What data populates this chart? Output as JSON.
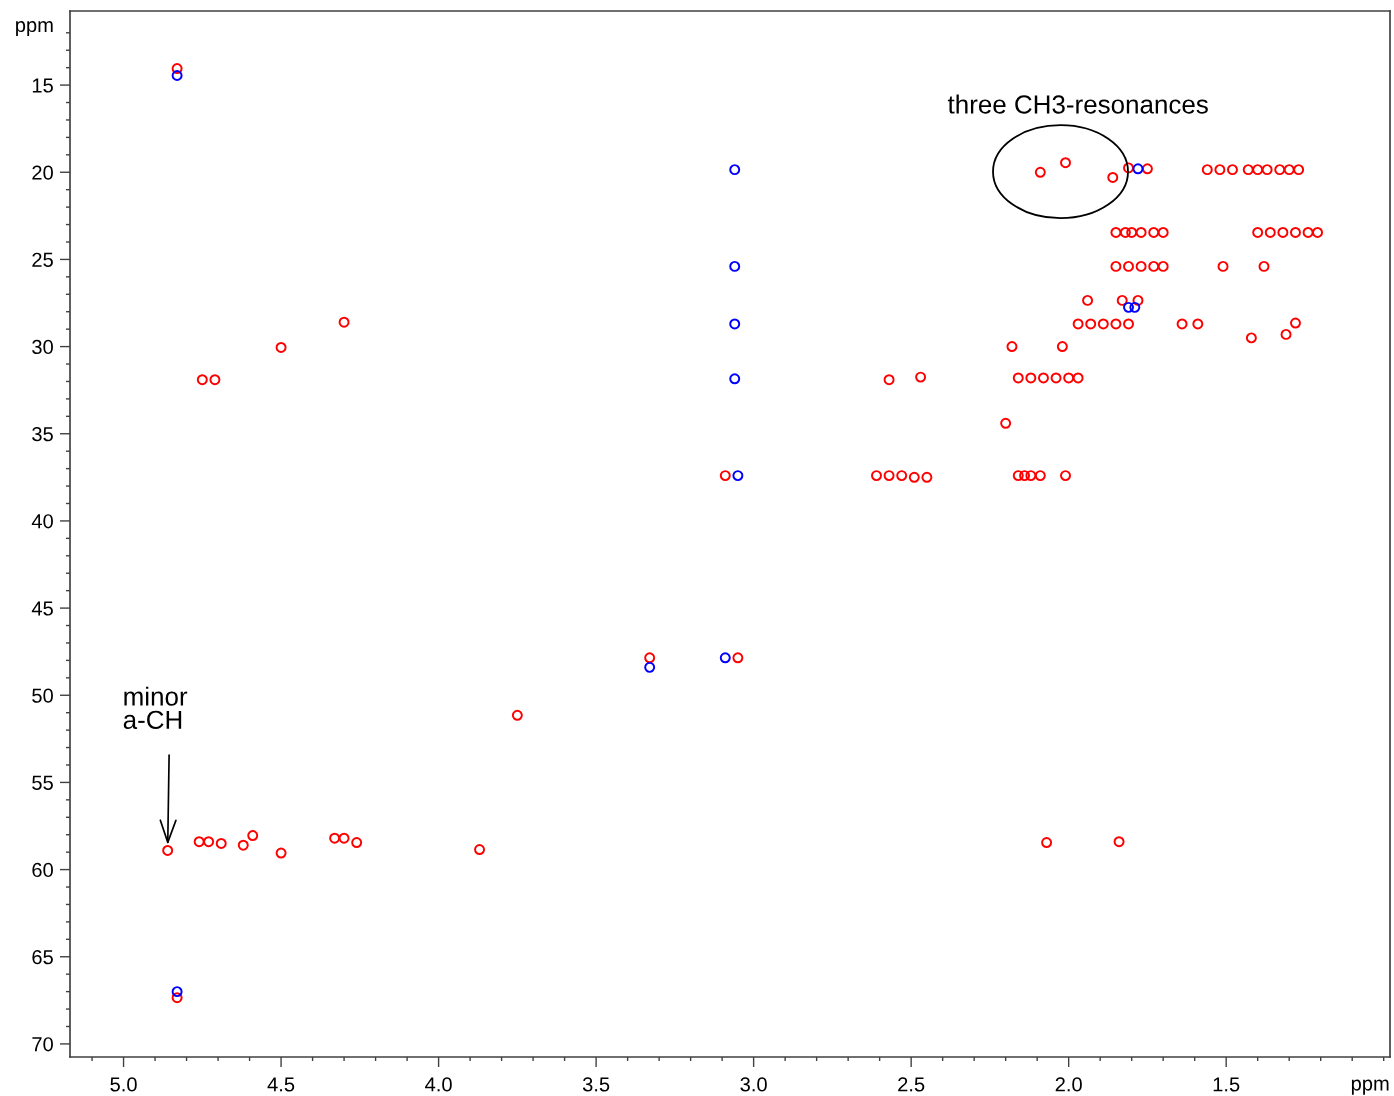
{
  "chart_data": {
    "type": "scatter",
    "xlabel": "ppm",
    "ylabel": "ppm",
    "marker": "circle",
    "xlim": [
      5.17,
      0.98
    ],
    "ylim": [
      70.75,
      10.75
    ],
    "xticks": [
      {
        "value": 5.0,
        "label": "5.0"
      },
      {
        "value": 4.5,
        "label": "4.5"
      },
      {
        "value": 4.0,
        "label": "4.0"
      },
      {
        "value": 3.5,
        "label": "3.5"
      },
      {
        "value": 3.0,
        "label": "3.0"
      },
      {
        "value": 2.5,
        "label": "2.5"
      },
      {
        "value": 2.0,
        "label": "2.0"
      },
      {
        "value": 1.5,
        "label": "1.5"
      },
      {
        "value": 5.1,
        "label": null
      },
      {
        "value": 4.9,
        "label": null
      },
      {
        "value": 4.8,
        "label": null
      },
      {
        "value": 4.7,
        "label": null
      },
      {
        "value": 4.6,
        "label": null
      },
      {
        "value": 4.4,
        "label": null
      },
      {
        "value": 4.3,
        "label": null
      },
      {
        "value": 4.2,
        "label": null
      },
      {
        "value": 4.1,
        "label": null
      },
      {
        "value": 3.9,
        "label": null
      },
      {
        "value": 3.8,
        "label": null
      },
      {
        "value": 3.7,
        "label": null
      },
      {
        "value": 3.6,
        "label": null
      },
      {
        "value": 3.4,
        "label": null
      },
      {
        "value": 3.3,
        "label": null
      },
      {
        "value": 3.2,
        "label": null
      },
      {
        "value": 3.1,
        "label": null
      },
      {
        "value": 2.9,
        "label": null
      },
      {
        "value": 2.8,
        "label": null
      },
      {
        "value": 2.7,
        "label": null
      },
      {
        "value": 2.6,
        "label": null
      },
      {
        "value": 2.4,
        "label": null
      },
      {
        "value": 2.3,
        "label": null
      },
      {
        "value": 2.2,
        "label": null
      },
      {
        "value": 2.1,
        "label": null
      },
      {
        "value": 1.9,
        "label": null
      },
      {
        "value": 1.8,
        "label": null
      },
      {
        "value": 1.7,
        "label": null
      },
      {
        "value": 1.6,
        "label": null
      },
      {
        "value": 1.4,
        "label": null
      },
      {
        "value": 1.3,
        "label": null
      },
      {
        "value": 1.2,
        "label": null
      },
      {
        "value": 1.1,
        "label": null
      },
      {
        "value": 1.0,
        "label": null
      }
    ],
    "yticks": [
      15,
      20,
      25,
      30,
      35,
      40,
      45,
      50,
      55,
      60,
      65,
      70,
      {
        "value": 12,
        "label": null
      },
      {
        "value": 13,
        "label": null
      },
      {
        "value": 14,
        "label": null
      },
      {
        "value": 16,
        "label": null
      },
      {
        "value": 17,
        "label": null
      },
      {
        "value": 18,
        "label": null
      },
      {
        "value": 19,
        "label": null
      },
      {
        "value": 21,
        "label": null
      },
      {
        "value": 22,
        "label": null
      },
      {
        "value": 23,
        "label": null
      },
      {
        "value": 24,
        "label": null
      },
      {
        "value": 26,
        "label": null
      },
      {
        "value": 27,
        "label": null
      },
      {
        "value": 28,
        "label": null
      },
      {
        "value": 29,
        "label": null
      },
      {
        "value": 31,
        "label": null
      },
      {
        "value": 32,
        "label": null
      },
      {
        "value": 33,
        "label": null
      },
      {
        "value": 34,
        "label": null
      },
      {
        "value": 36,
        "label": null
      },
      {
        "value": 37,
        "label": null
      },
      {
        "value": 38,
        "label": null
      },
      {
        "value": 39,
        "label": null
      },
      {
        "value": 41,
        "label": null
      },
      {
        "value": 42,
        "label": null
      },
      {
        "value": 43,
        "label": null
      },
      {
        "value": 44,
        "label": null
      },
      {
        "value": 46,
        "label": null
      },
      {
        "value": 47,
        "label": null
      },
      {
        "value": 48,
        "label": null
      },
      {
        "value": 49,
        "label": null
      },
      {
        "value": 51,
        "label": null
      },
      {
        "value": 52,
        "label": null
      },
      {
        "value": 53,
        "label": null
      },
      {
        "value": 54,
        "label": null
      },
      {
        "value": 56,
        "label": null
      },
      {
        "value": 57,
        "label": null
      },
      {
        "value": 58,
        "label": null
      },
      {
        "value": 59,
        "label": null
      },
      {
        "value": 61,
        "label": null
      },
      {
        "value": 62,
        "label": null
      },
      {
        "value": 63,
        "label": null
      },
      {
        "value": 64,
        "label": null
      },
      {
        "value": 66,
        "label": null
      },
      {
        "value": 67,
        "label": null
      },
      {
        "value": 68,
        "label": null
      },
      {
        "value": 69,
        "label": null
      }
    ],
    "annotations": [
      {
        "text": "three CH3-resonances",
        "x": 2.01,
        "y": 19.45
      },
      {
        "text": "minor\na-CH",
        "x": 4.86,
        "y": 58.9
      }
    ],
    "series": [
      {
        "color": "#ff0000",
        "x": [
          4.83,
          4.75,
          4.71,
          4.5,
          4.3,
          2.09,
          2.01,
          1.86,
          1.81,
          1.75,
          1.56,
          1.52,
          1.48,
          1.43,
          1.4,
          1.37,
          1.33,
          1.3,
          1.27,
          1.85,
          1.82,
          1.8,
          1.77,
          1.73,
          1.7,
          1.4,
          1.36,
          1.32,
          1.28,
          1.24,
          1.21,
          1.85,
          1.81,
          1.77,
          1.73,
          1.7,
          1.51,
          1.38,
          1.94,
          1.83,
          1.78,
          1.97,
          1.93,
          1.89,
          1.85,
          1.81,
          1.64,
          1.59,
          1.28,
          1.42,
          1.31,
          2.18,
          2.02,
          2.16,
          2.12,
          2.08,
          2.04,
          2.0,
          1.97,
          2.2,
          2.16,
          2.14,
          2.12,
          2.09,
          2.01,
          3.09,
          2.61,
          2.57,
          2.53,
          2.49,
          2.45,
          2.57,
          2.47,
          3.33,
          3.05,
          3.75,
          4.86,
          4.76,
          4.73,
          4.69,
          4.62,
          4.59,
          4.5,
          4.33,
          4.3,
          4.26,
          3.87,
          2.07,
          1.84,
          4.83
        ],
        "values": [
          14.05,
          31.9,
          31.9,
          30.05,
          28.6,
          20.0,
          19.45,
          20.3,
          19.75,
          19.8,
          19.85,
          19.85,
          19.85,
          19.85,
          19.85,
          19.85,
          19.85,
          19.85,
          19.85,
          23.45,
          23.45,
          23.45,
          23.45,
          23.45,
          23.45,
          23.45,
          23.45,
          23.45,
          23.45,
          23.45,
          23.45,
          25.4,
          25.4,
          25.4,
          25.4,
          25.4,
          25.4,
          25.4,
          27.35,
          27.35,
          27.35,
          28.7,
          28.7,
          28.7,
          28.7,
          28.7,
          28.7,
          28.7,
          28.65,
          29.5,
          29.3,
          30.0,
          30.0,
          31.8,
          31.8,
          31.8,
          31.8,
          31.8,
          31.8,
          34.4,
          37.4,
          37.4,
          37.4,
          37.4,
          37.4,
          37.4,
          37.4,
          37.4,
          37.4,
          37.5,
          37.5,
          31.9,
          31.75,
          47.85,
          47.85,
          51.15,
          58.9,
          58.4,
          58.4,
          58.5,
          58.6,
          58.05,
          59.05,
          58.2,
          58.2,
          58.45,
          58.85,
          58.45,
          58.4,
          67.35
        ]
      },
      {
        "color": "#0000ff",
        "x": [
          4.83,
          3.06,
          3.06,
          3.06,
          3.06,
          3.05,
          3.09,
          3.33,
          1.81,
          1.79,
          1.78,
          4.83
        ],
        "values": [
          14.45,
          19.85,
          25.4,
          28.7,
          31.85,
          37.4,
          47.85,
          48.4,
          27.75,
          27.75,
          19.8,
          67.0
        ]
      }
    ]
  }
}
